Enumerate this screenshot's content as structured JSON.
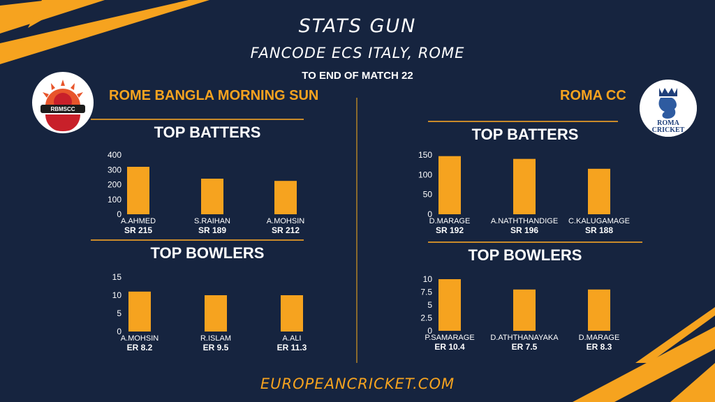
{
  "header": {
    "title": "STATS GUN",
    "subtitle": "FANCODE ECS ITALY, ROME",
    "note": "TO END OF MATCH 22"
  },
  "teams": {
    "left": {
      "name": "ROME BANGLA MORNING SUN",
      "logo_text": "RBMSCC"
    },
    "right": {
      "name": "ROMA CC",
      "logo_text_1": "ROMA",
      "logo_text_2": "CRICKET"
    }
  },
  "footer": {
    "text": "EUROPEANCRICKET.COM"
  },
  "colors": {
    "background": "#16243f",
    "accent": "#f6a31f",
    "text": "#ffffff"
  },
  "chart_data": [
    {
      "id": "left-batters",
      "type": "bar",
      "title": "TOP BATTERS",
      "categories": [
        "A.AHMED",
        "S.RAIHAN",
        "A.MOHSIN"
      ],
      "sublabels": [
        "SR 215",
        "SR 189",
        "SR 212"
      ],
      "values": [
        320,
        240,
        225
      ],
      "ylim": [
        0,
        400
      ],
      "yticks": [
        0,
        100,
        200,
        300,
        400
      ],
      "grid": false
    },
    {
      "id": "left-bowlers",
      "type": "bar",
      "title": "TOP BOWLERS",
      "categories": [
        "A.MOHSIN",
        "R.ISLAM",
        "A.ALI"
      ],
      "sublabels": [
        "ER 8.2",
        "ER 9.5",
        "ER 11.3"
      ],
      "values": [
        11,
        10,
        10
      ],
      "ylim": [
        0,
        15
      ],
      "yticks": [
        0,
        5,
        10,
        15
      ],
      "grid": false
    },
    {
      "id": "right-batters",
      "type": "bar",
      "title": "TOP BATTERS",
      "categories": [
        "D.MARAGE",
        "A.NATHTHANDIGE",
        "C.KALUGAMAGE"
      ],
      "sublabels": [
        "SR 192",
        "SR 196",
        "SR 188"
      ],
      "values": [
        147,
        140,
        115
      ],
      "ylim": [
        0,
        150
      ],
      "yticks": [
        0,
        50,
        100,
        150
      ],
      "grid": false
    },
    {
      "id": "right-bowlers",
      "type": "bar",
      "title": "TOP BOWLERS",
      "categories": [
        "P.SAMARAGE",
        "D.ATHTHANAYAKA",
        "D.MARAGE"
      ],
      "sublabels": [
        "ER 10.4",
        "ER 7.5",
        "ER 8.3"
      ],
      "values": [
        10,
        8,
        8
      ],
      "ylim": [
        0,
        10
      ],
      "yticks": [
        "0",
        "2.5",
        "5",
        "7.5",
        "10"
      ],
      "grid": false
    }
  ]
}
